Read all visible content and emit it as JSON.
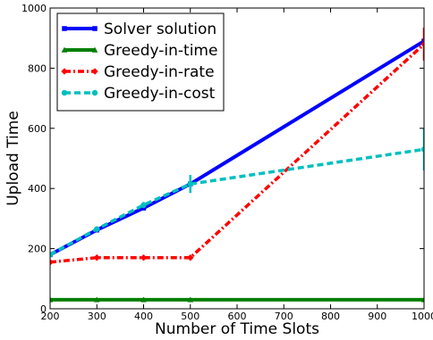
{
  "chart_data": {
    "type": "line",
    "xlabel": "Number of Time Slots",
    "ylabel": "Upload Time",
    "xlim": [
      200,
      1000
    ],
    "ylim": [
      0,
      1000
    ],
    "xticks": [
      200,
      300,
      400,
      500,
      600,
      700,
      800,
      900,
      1000
    ],
    "yticks": [
      0,
      200,
      400,
      600,
      800,
      1000
    ],
    "grid": false,
    "legend_position": "top-left",
    "series": [
      {
        "name": "Solver solution",
        "color": "#0000ff",
        "line_style": "solid",
        "marker": "square",
        "x": [
          200,
          300,
          400,
          500,
          1000
        ],
        "y": [
          180,
          262,
          335,
          415,
          890
        ],
        "error": [
          3,
          4,
          6,
          8,
          10
        ]
      },
      {
        "name": "Greedy-in-time",
        "color": "#008000",
        "line_style": "solid",
        "marker": "triangle",
        "x": [
          200,
          300,
          400,
          500,
          1000
        ],
        "y": [
          30,
          30,
          30,
          30,
          30
        ],
        "error": [
          0,
          0,
          0,
          0,
          0
        ]
      },
      {
        "name": "Greedy-in-rate",
        "color": "#ff0000",
        "line_style": "dashdot",
        "marker": "diamond",
        "x": [
          200,
          300,
          400,
          500,
          1000
        ],
        "y": [
          155,
          170,
          170,
          170,
          880
        ],
        "error": [
          4,
          4,
          4,
          4,
          55
        ]
      },
      {
        "name": "Greedy-in-cost",
        "color": "#00bfbf",
        "line_style": "dashed",
        "marker": "circle",
        "x": [
          200,
          300,
          400,
          500,
          1000
        ],
        "y": [
          180,
          265,
          345,
          415,
          530
        ],
        "error": [
          5,
          6,
          10,
          30,
          70
        ]
      }
    ]
  }
}
